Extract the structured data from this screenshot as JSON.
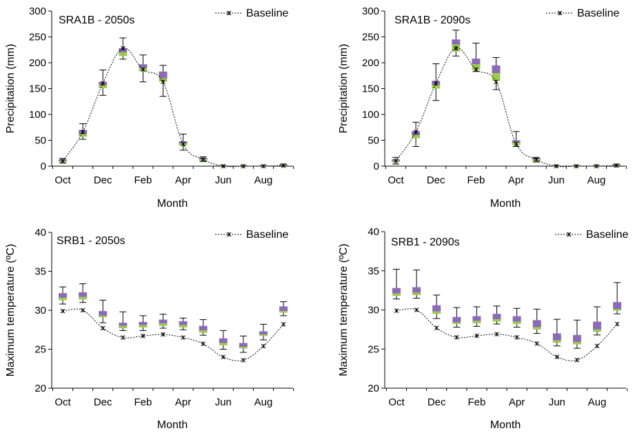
{
  "figure": {
    "colors": {
      "upper": "#8b6bb5",
      "lower": "#9ccc4f",
      "baseline": "#000000",
      "axis": "#000000"
    }
  },
  "chart_data": [
    {
      "type": "line",
      "title": "SRA1B - 2050s",
      "xlabel": "Month",
      "ylabel": "Precipitation (mm)",
      "ylim": [
        0,
        300
      ],
      "yticks": [
        0,
        50,
        100,
        150,
        200,
        250,
        300
      ],
      "categories": [
        "Oct",
        "Nov",
        "Dec",
        "Jan",
        "Feb",
        "Mar",
        "Apr",
        "May",
        "Jun",
        "Jul",
        "Aug",
        "Sep"
      ],
      "tick_labels": [
        "Oct",
        "Dec",
        "Feb",
        "Apr",
        "Jun",
        "Aug"
      ],
      "legend": {
        "label": "Baseline",
        "position": "top-right"
      },
      "grid": false,
      "baseline": [
        10,
        66,
        160,
        228,
        187,
        163,
        43,
        13,
        0,
        0,
        0,
        1
      ],
      "box_high": [
        13,
        70,
        163,
        228,
        197,
        183,
        48,
        16,
        1,
        1,
        1,
        3
      ],
      "box_low": [
        8,
        57,
        151,
        213,
        184,
        163,
        40,
        10,
        0,
        0,
        0,
        1
      ],
      "box_mid": [
        10,
        62,
        157,
        220,
        190,
        170,
        44,
        13,
        0,
        0,
        0,
        2
      ],
      "err_high": [
        15,
        82,
        186,
        248,
        215,
        195,
        62,
        18,
        1,
        1,
        1,
        4
      ],
      "err_low": [
        6,
        52,
        137,
        207,
        163,
        135,
        31,
        9,
        0,
        0,
        0,
        0
      ]
    },
    {
      "type": "line",
      "title": "SRA1B - 2090s",
      "xlabel": "Month",
      "ylabel": "Precipitation (mm)",
      "ylim": [
        0,
        300
      ],
      "yticks": [
        0,
        50,
        100,
        150,
        200,
        250,
        300
      ],
      "categories": [
        "Oct",
        "Nov",
        "Dec",
        "Jan",
        "Feb",
        "Mar",
        "Apr",
        "May",
        "Jun",
        "Jul",
        "Aug",
        "Sep"
      ],
      "tick_labels": [
        "Oct",
        "Dec",
        "Feb",
        "Apr",
        "Jun",
        "Aug"
      ],
      "legend": {
        "label": "Baseline",
        "position": "top-right"
      },
      "grid": false,
      "baseline": [
        10,
        66,
        160,
        228,
        187,
        163,
        43,
        13,
        0,
        0,
        0,
        1
      ],
      "box_high": [
        13,
        68,
        165,
        245,
        208,
        195,
        50,
        16,
        1,
        1,
        1,
        3
      ],
      "box_low": [
        8,
        54,
        150,
        222,
        186,
        165,
        41,
        10,
        0,
        0,
        0,
        1
      ],
      "box_mid": [
        10,
        60,
        157,
        235,
        197,
        180,
        46,
        13,
        0,
        0,
        0,
        2
      ],
      "err_high": [
        17,
        85,
        198,
        263,
        238,
        210,
        67,
        17,
        1,
        1,
        1,
        4
      ],
      "err_low": [
        4,
        38,
        127,
        213,
        183,
        148,
        38,
        8,
        0,
        0,
        0,
        0
      ]
    },
    {
      "type": "line",
      "title": "SRB1 - 2050s",
      "xlabel": "Month",
      "ylabel": "Maximum temperature (ºC)",
      "ylim": [
        20,
        40
      ],
      "yticks": [
        20,
        25,
        30,
        35,
        40
      ],
      "categories": [
        "Oct",
        "Nov",
        "Dec",
        "Jan",
        "Feb",
        "Mar",
        "Apr",
        "May",
        "Jun",
        "Jul",
        "Aug",
        "Sep"
      ],
      "tick_labels": [
        "Oct",
        "Dec",
        "Feb",
        "Apr",
        "Jun",
        "Aug"
      ],
      "legend": {
        "label": "Baseline",
        "position": "top-right"
      },
      "grid": false,
      "baseline": [
        29.9,
        30.0,
        27.7,
        26.5,
        26.7,
        26.9,
        26.5,
        25.7,
        24.0,
        23.6,
        25.4,
        28.2
      ],
      "box_high": [
        32.2,
        32.3,
        29.9,
        28.4,
        28.5,
        28.8,
        28.6,
        28.0,
        26.4,
        25.8,
        27.3,
        30.5
      ],
      "box_low": [
        31.3,
        31.4,
        29.1,
        27.7,
        27.8,
        28.0,
        27.8,
        27.1,
        25.5,
        25.1,
        26.7,
        29.7
      ],
      "box_mid": [
        31.6,
        31.7,
        29.3,
        28.0,
        28.1,
        28.3,
        28.1,
        27.4,
        25.8,
        25.3,
        26.9,
        29.9
      ],
      "err_high": [
        33.0,
        33.4,
        31.3,
        29.8,
        29.3,
        29.5,
        29.0,
        28.8,
        27.4,
        26.7,
        28.2,
        31.1
      ],
      "err_low": [
        30.8,
        31.0,
        28.4,
        27.4,
        27.4,
        27.7,
        27.5,
        26.8,
        25.0,
        24.6,
        26.2,
        29.3
      ]
    },
    {
      "type": "line",
      "title": "SRB1 - 2090s",
      "xlabel": "Month",
      "ylabel": "Maximum temperature (ºC)",
      "ylim": [
        20,
        40
      ],
      "yticks": [
        20,
        25,
        30,
        35,
        40
      ],
      "categories": [
        "Oct",
        "Nov",
        "Dec",
        "Jan",
        "Feb",
        "Mar",
        "Apr",
        "May",
        "Jun",
        "Jul",
        "Aug",
        "Sep"
      ],
      "tick_labels": [
        "Oct",
        "Dec",
        "Feb",
        "Apr",
        "Jun",
        "Aug"
      ],
      "legend": {
        "label": "Baseline",
        "position": "top-right"
      },
      "grid": false,
      "baseline": [
        29.9,
        30.0,
        27.7,
        26.5,
        26.7,
        26.9,
        26.5,
        25.7,
        24.0,
        23.6,
        25.4,
        28.2
      ],
      "box_high": [
        32.8,
        32.9,
        30.6,
        29.1,
        29.2,
        29.5,
        29.2,
        28.7,
        27.0,
        26.8,
        28.5,
        31.0
      ],
      "box_low": [
        31.8,
        31.9,
        29.5,
        28.2,
        28.3,
        28.5,
        28.2,
        27.5,
        25.8,
        25.6,
        27.2,
        29.9
      ],
      "box_mid": [
        32.1,
        32.2,
        29.8,
        28.4,
        28.6,
        28.8,
        28.5,
        27.8,
        26.1,
        25.9,
        27.5,
        30.1
      ],
      "err_high": [
        35.2,
        35.1,
        31.9,
        30.3,
        30.4,
        30.5,
        30.2,
        30.1,
        28.8,
        28.7,
        30.4,
        33.5
      ],
      "err_low": [
        31.4,
        31.5,
        28.9,
        27.8,
        27.9,
        28.2,
        27.8,
        27.0,
        25.4,
        25.1,
        26.8,
        29.5
      ]
    }
  ]
}
